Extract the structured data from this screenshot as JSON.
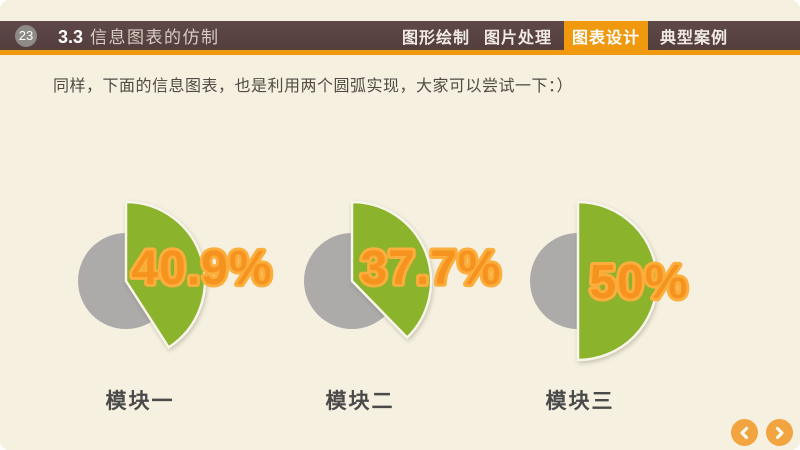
{
  "slide": {
    "page_number": "23",
    "title_prefix": "3.3",
    "title": "信息图表的仿制",
    "nav_tabs": [
      {
        "label": "图形绘制",
        "active": false
      },
      {
        "label": "图片处理",
        "active": false
      },
      {
        "label": "图表设计",
        "active": true
      },
      {
        "label": "典型案例",
        "active": false
      }
    ],
    "body_text": "同样，下面的信息图表，也是利用两个圆弧实现，大家可以尝试一下：）"
  },
  "chart_data": {
    "type": "pie",
    "description": "Three partial-pie infographics: green wedge starts at 12 o'clock sweeping clockwise by the given percentage over a smaller gray remainder circle",
    "charts": [
      {
        "label": "模块一",
        "value": 40.9,
        "display": "40.9%"
      },
      {
        "label": "模块二",
        "value": 37.7,
        "display": "37.7%"
      },
      {
        "label": "模块三",
        "value": 50,
        "display": "50%"
      }
    ],
    "legend_position": "none",
    "colors": {
      "slice": "#8BB32C",
      "remainder": "#ACABAA",
      "value_fill": "#F6921E",
      "value_outline": "#FBAE3C",
      "label_text": "#4A4A4A"
    }
  },
  "theme_colors": {
    "slide_background": "#F5F0E0",
    "header_brown": "#584141",
    "accent_orange": "#F0990F",
    "pager_orange": "#F2A440"
  },
  "pager": {
    "prev_icon": "chevron-left",
    "next_icon": "chevron-right"
  }
}
